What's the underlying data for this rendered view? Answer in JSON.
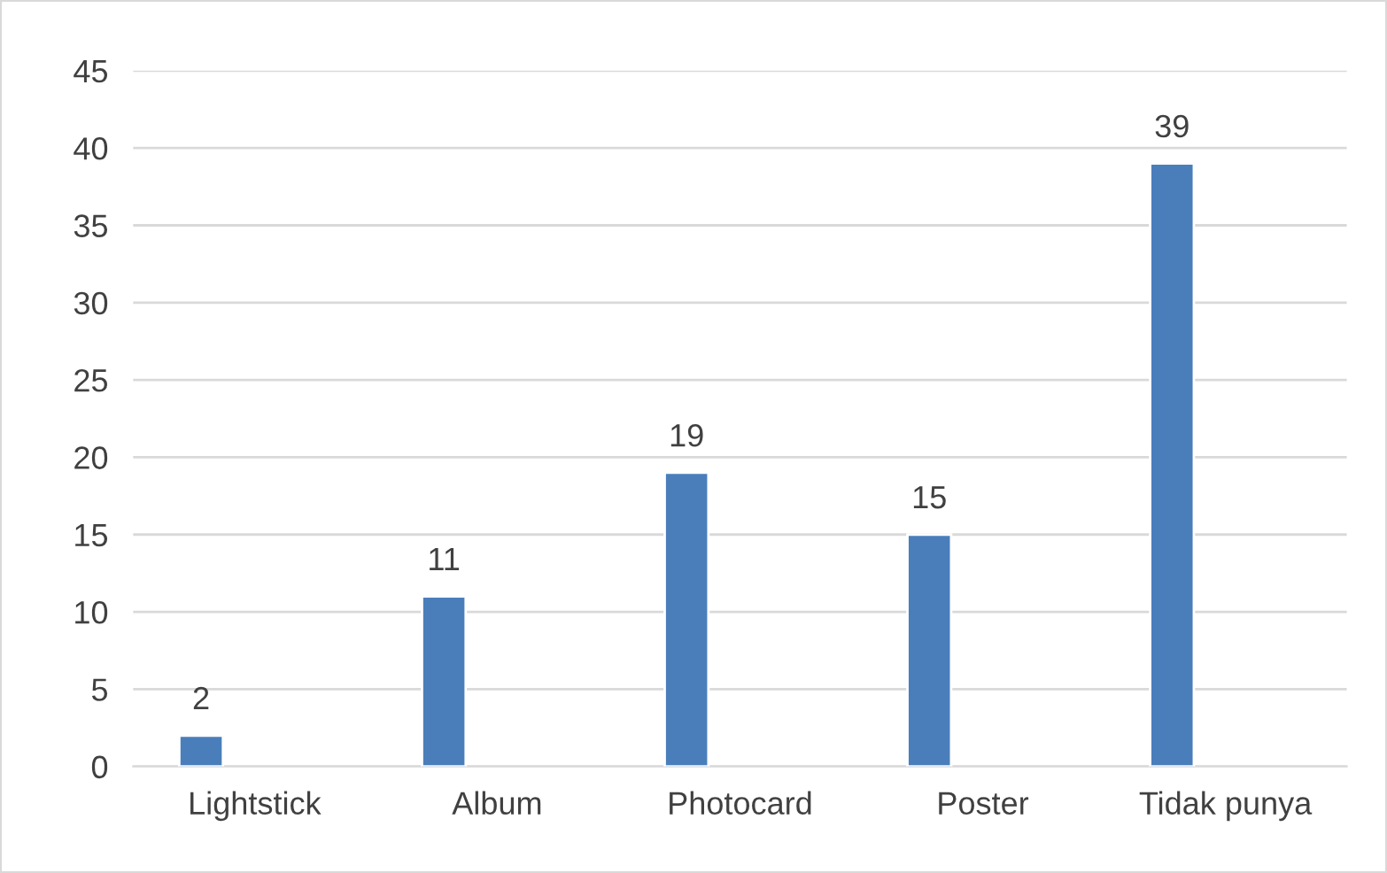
{
  "chart_data": {
    "type": "bar",
    "categories": [
      "Lightstick",
      "Album",
      "Photocard",
      "Poster",
      "Tidak punya"
    ],
    "values": [
      2,
      11,
      19,
      15,
      39
    ],
    "color": "#4a7ebb",
    "ylim": [
      0,
      45
    ],
    "yticks": [
      0,
      5,
      10,
      15,
      20,
      25,
      30,
      35,
      40,
      45
    ],
    "grid": "y",
    "data_labels": true
  }
}
